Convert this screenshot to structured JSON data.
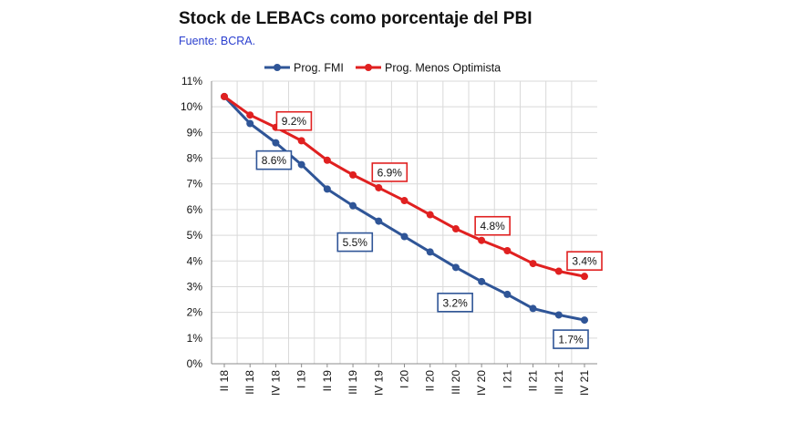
{
  "chart_data": {
    "type": "line",
    "title": "Stock de LEBACs como porcentaje del PBI",
    "subtitle": "Fuente: BCRA.",
    "xlabel": "",
    "ylabel": "",
    "ylim": [
      0,
      11
    ],
    "y_ticks": [
      "0%",
      "1%",
      "2%",
      "3%",
      "4%",
      "5%",
      "6%",
      "7%",
      "8%",
      "9%",
      "10%",
      "11%"
    ],
    "categories": [
      "II 18",
      "III 18",
      "IV 18",
      "I 19",
      "II 19",
      "III 19",
      "IV 19",
      "I 20",
      "II 20",
      "III 20",
      "IV 20",
      "I 21",
      "II 21",
      "III 21",
      "IV 21"
    ],
    "x_points": [
      0,
      0.5,
      1,
      1.5,
      2,
      2.5,
      3,
      3.5,
      4,
      4.5,
      5,
      5.5,
      6,
      6.5,
      7,
      7.5,
      8,
      8.5,
      9,
      9.5,
      10,
      10.5,
      11,
      11.5,
      12,
      12.5,
      13,
      13.5,
      14
    ],
    "grid": true,
    "legend_position": "top",
    "series": [
      {
        "name": "Prog. FMI",
        "color": "#2f5597",
        "values": [
          10.4,
          9.35,
          8.6,
          7.75,
          6.8,
          6.15,
          5.55,
          4.95,
          4.35,
          3.75,
          3.2,
          2.7,
          2.15,
          1.9,
          1.7
        ],
        "x": [
          0,
          1,
          2,
          3,
          4,
          5,
          6,
          7,
          8,
          9,
          10,
          11,
          12,
          13,
          14
        ]
      },
      {
        "name": "Prog. Menos Optimista",
        "color": "#e02020",
        "values": [
          10.4,
          9.68,
          9.2,
          8.68,
          7.92,
          7.35,
          6.85,
          6.35,
          5.8,
          5.25,
          4.8,
          4.4,
          3.9,
          3.6,
          3.4
        ],
        "x": [
          0,
          1,
          2,
          3,
          4,
          5,
          6,
          7,
          8,
          9,
          10,
          11,
          12,
          13,
          14
        ]
      }
    ],
    "annotations": [
      {
        "text": "9.2%",
        "series": 1,
        "x": 2,
        "y": 9.2
      },
      {
        "text": "6.9%",
        "series": 1,
        "x": 6,
        "y": 6.85
      },
      {
        "text": "4.8%",
        "series": 1,
        "x": 10,
        "y": 4.8
      },
      {
        "text": "3.4%",
        "series": 1,
        "x": 14,
        "y": 3.4
      },
      {
        "text": "8.6%",
        "series": 0,
        "x": 2,
        "y": 8.6
      },
      {
        "text": "5.5%",
        "series": 0,
        "x": 6,
        "y": 5.55
      },
      {
        "text": "3.2%",
        "series": 0,
        "x": 10,
        "y": 3.2
      },
      {
        "text": "1.7%",
        "series": 0,
        "x": 14,
        "y": 1.7
      }
    ]
  }
}
